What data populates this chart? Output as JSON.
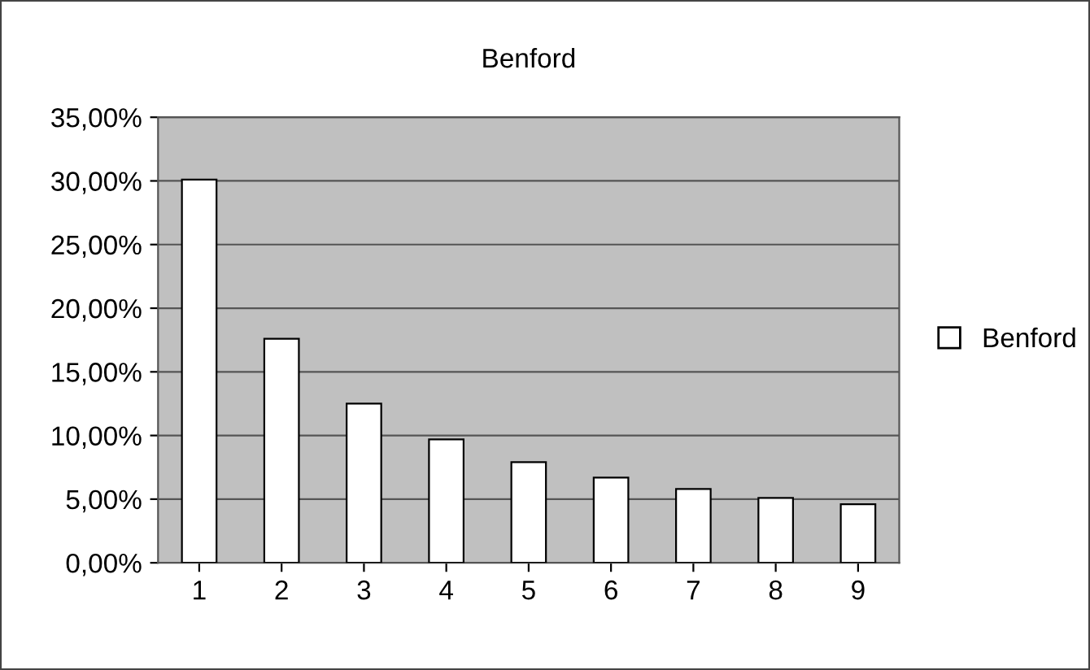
{
  "chart_data": {
    "type": "bar",
    "title": "Benford",
    "categories": [
      "1",
      "2",
      "3",
      "4",
      "5",
      "6",
      "7",
      "8",
      "9"
    ],
    "series": [
      {
        "name": "Benford",
        "color": "#ffffff",
        "values": [
          30.1,
          17.6,
          12.5,
          9.7,
          7.9,
          6.7,
          5.8,
          5.1,
          4.6
        ]
      }
    ],
    "ylim": [
      0,
      35
    ],
    "yticks": [
      {
        "value": 0,
        "label": "0,00%"
      },
      {
        "value": 5,
        "label": "5,00%"
      },
      {
        "value": 10,
        "label": "10,00%"
      },
      {
        "value": 15,
        "label": "15,00%"
      },
      {
        "value": 20,
        "label": "20,00%"
      },
      {
        "value": 25,
        "label": "25,00%"
      },
      {
        "value": 30,
        "label": "30,00%"
      },
      {
        "value": 35,
        "label": "35,00%"
      }
    ],
    "grid": "y",
    "legend": "right"
  }
}
